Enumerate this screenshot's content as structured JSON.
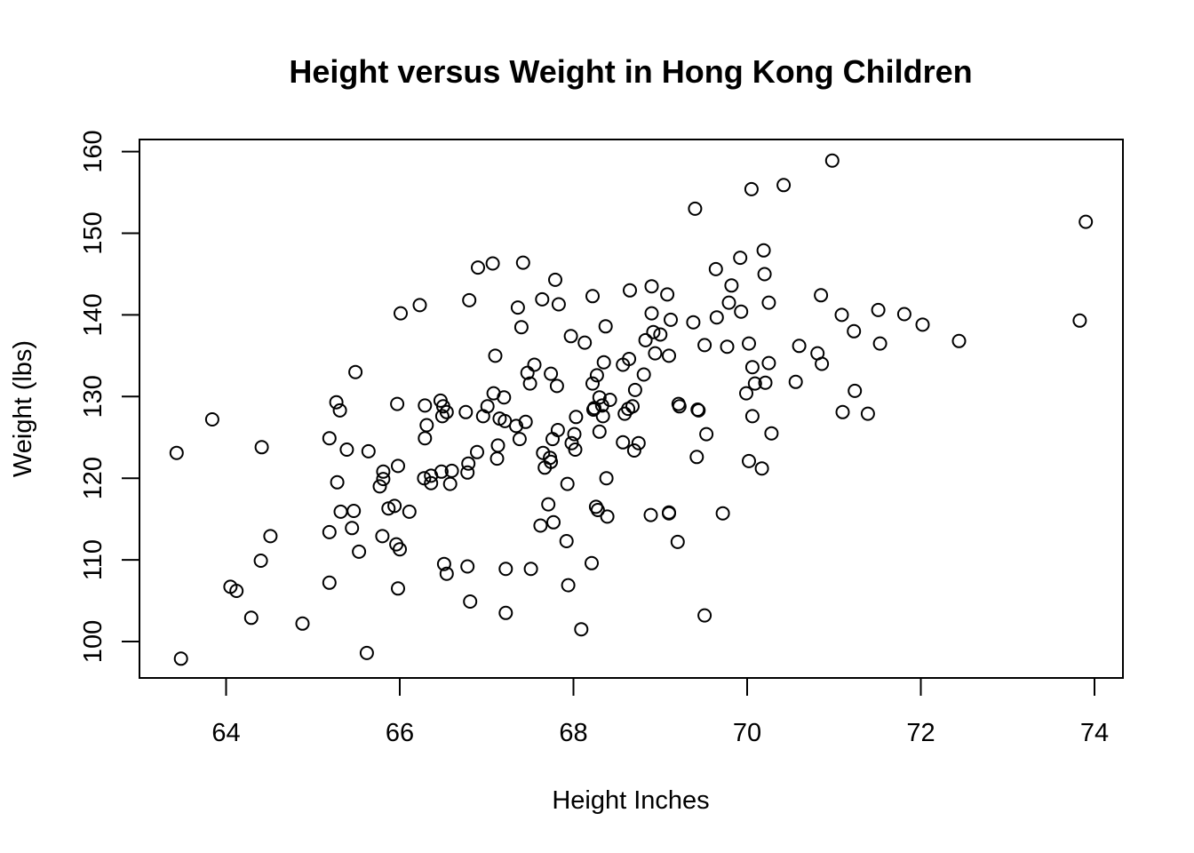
{
  "chart_data": {
    "type": "scatter",
    "title": "Height versus Weight in Hong Kong Children",
    "xlabel": "Height Inches",
    "ylabel": "Weight (lbs)",
    "xlim": [
      63.0,
      74.3
    ],
    "ylim": [
      95.5,
      161.3
    ],
    "x_ticks": [
      64,
      66,
      68,
      70,
      72,
      74
    ],
    "y_ticks": [
      100,
      110,
      120,
      130,
      140,
      150,
      160
    ],
    "grid": false,
    "legend": "none",
    "marker": "open-circle",
    "color": "#000000",
    "points": [
      [
        63.43,
        123.1
      ],
      [
        63.48,
        97.9
      ],
      [
        63.84,
        127.2
      ],
      [
        64.05,
        106.7
      ],
      [
        64.12,
        106.2
      ],
      [
        64.29,
        102.9
      ],
      [
        64.4,
        109.9
      ],
      [
        64.41,
        123.8
      ],
      [
        64.51,
        112.9
      ],
      [
        64.88,
        102.2
      ],
      [
        65.19,
        124.9
      ],
      [
        65.19,
        113.4
      ],
      [
        65.19,
        107.2
      ],
      [
        65.27,
        129.3
      ],
      [
        65.28,
        119.5
      ],
      [
        65.31,
        128.3
      ],
      [
        65.32,
        115.9
      ],
      [
        65.39,
        123.5
      ],
      [
        65.45,
        113.9
      ],
      [
        65.47,
        116.0
      ],
      [
        65.49,
        133.0
      ],
      [
        65.53,
        111.0
      ],
      [
        65.62,
        98.6
      ],
      [
        65.64,
        123.3
      ],
      [
        65.77,
        119.0
      ],
      [
        65.8,
        112.9
      ],
      [
        65.81,
        120.8
      ],
      [
        65.81,
        119.9
      ],
      [
        65.87,
        116.3
      ],
      [
        65.94,
        116.6
      ],
      [
        65.96,
        111.9
      ],
      [
        65.97,
        129.1
      ],
      [
        65.98,
        106.5
      ],
      [
        65.98,
        121.5
      ],
      [
        66.0,
        111.3
      ],
      [
        66.01,
        140.2
      ],
      [
        66.11,
        115.9
      ],
      [
        66.23,
        141.2
      ],
      [
        66.28,
        120.0
      ],
      [
        66.29,
        124.9
      ],
      [
        66.29,
        128.9
      ],
      [
        66.31,
        126.5
      ],
      [
        66.36,
        120.3
      ],
      [
        66.36,
        119.4
      ],
      [
        66.47,
        129.5
      ],
      [
        66.48,
        120.8
      ],
      [
        66.49,
        127.6
      ],
      [
        66.5,
        128.8
      ],
      [
        66.51,
        109.5
      ],
      [
        66.54,
        108.3
      ],
      [
        66.54,
        128.1
      ],
      [
        66.58,
        119.3
      ],
      [
        66.6,
        120.9
      ],
      [
        66.76,
        128.1
      ],
      [
        66.78,
        109.2
      ],
      [
        66.78,
        120.7
      ],
      [
        66.79,
        121.8
      ],
      [
        66.8,
        141.8
      ],
      [
        66.81,
        104.9
      ],
      [
        66.89,
        123.2
      ],
      [
        66.9,
        145.8
      ],
      [
        66.96,
        127.6
      ],
      [
        67.01,
        128.8
      ],
      [
        67.07,
        146.3
      ],
      [
        67.08,
        130.4
      ],
      [
        67.1,
        135.0
      ],
      [
        67.12,
        122.4
      ],
      [
        67.13,
        124.0
      ],
      [
        67.15,
        127.3
      ],
      [
        67.2,
        129.9
      ],
      [
        67.21,
        127.0
      ],
      [
        67.22,
        103.5
      ],
      [
        67.22,
        108.9
      ],
      [
        67.34,
        126.4
      ],
      [
        67.36,
        140.9
      ],
      [
        67.38,
        124.8
      ],
      [
        67.4,
        138.5
      ],
      [
        67.42,
        146.4
      ],
      [
        67.45,
        126.9
      ],
      [
        67.47,
        132.9
      ],
      [
        67.5,
        131.6
      ],
      [
        67.51,
        108.9
      ],
      [
        67.55,
        133.9
      ],
      [
        67.62,
        114.2
      ],
      [
        67.64,
        141.9
      ],
      [
        67.65,
        123.1
      ],
      [
        67.67,
        121.3
      ],
      [
        67.71,
        116.8
      ],
      [
        67.73,
        122.5
      ],
      [
        67.74,
        132.8
      ],
      [
        67.74,
        122.0
      ],
      [
        67.76,
        124.8
      ],
      [
        67.77,
        114.6
      ],
      [
        67.79,
        144.3
      ],
      [
        67.81,
        131.3
      ],
      [
        67.82,
        125.9
      ],
      [
        67.83,
        141.3
      ],
      [
        67.92,
        112.3
      ],
      [
        67.93,
        119.3
      ],
      [
        67.94,
        106.9
      ],
      [
        67.97,
        137.4
      ],
      [
        67.98,
        124.3
      ],
      [
        68.01,
        125.4
      ],
      [
        68.02,
        123.5
      ],
      [
        68.03,
        127.5
      ],
      [
        68.09,
        101.5
      ],
      [
        68.13,
        136.6
      ],
      [
        68.21,
        109.6
      ],
      [
        68.22,
        142.3
      ],
      [
        68.22,
        131.6
      ],
      [
        68.23,
        128.4
      ],
      [
        68.24,
        128.6
      ],
      [
        68.26,
        116.5
      ],
      [
        68.27,
        132.6
      ],
      [
        68.28,
        116.1
      ],
      [
        68.3,
        129.9
      ],
      [
        68.3,
        125.7
      ],
      [
        68.33,
        128.9
      ],
      [
        68.34,
        127.6
      ],
      [
        68.35,
        134.2
      ],
      [
        68.37,
        138.6
      ],
      [
        68.38,
        120.0
      ],
      [
        68.39,
        115.3
      ],
      [
        68.42,
        129.6
      ],
      [
        68.57,
        133.9
      ],
      [
        68.57,
        124.4
      ],
      [
        68.59,
        127.9
      ],
      [
        68.63,
        128.5
      ],
      [
        68.64,
        134.6
      ],
      [
        68.65,
        143.0
      ],
      [
        68.68,
        128.8
      ],
      [
        68.7,
        123.4
      ],
      [
        68.71,
        130.8
      ],
      [
        68.75,
        124.3
      ],
      [
        68.81,
        132.7
      ],
      [
        68.83,
        136.9
      ],
      [
        68.89,
        115.5
      ],
      [
        68.9,
        143.5
      ],
      [
        68.9,
        140.2
      ],
      [
        68.92,
        137.9
      ],
      [
        68.94,
        135.3
      ],
      [
        69.0,
        137.6
      ],
      [
        69.08,
        142.5
      ],
      [
        69.1,
        115.7
      ],
      [
        69.1,
        115.8
      ],
      [
        69.1,
        135.0
      ],
      [
        69.12,
        139.4
      ],
      [
        69.2,
        112.2
      ],
      [
        69.21,
        129.1
      ],
      [
        69.22,
        128.8
      ],
      [
        69.38,
        139.1
      ],
      [
        69.4,
        153.0
      ],
      [
        69.42,
        122.6
      ],
      [
        69.43,
        128.4
      ],
      [
        69.44,
        128.3
      ],
      [
        69.51,
        103.2
      ],
      [
        69.51,
        136.3
      ],
      [
        69.53,
        125.4
      ],
      [
        69.64,
        145.6
      ],
      [
        69.65,
        139.7
      ],
      [
        69.72,
        115.7
      ],
      [
        69.77,
        136.1
      ],
      [
        69.79,
        141.5
      ],
      [
        69.82,
        143.6
      ],
      [
        69.92,
        147.0
      ],
      [
        69.93,
        140.4
      ],
      [
        69.99,
        130.4
      ],
      [
        70.02,
        122.1
      ],
      [
        70.02,
        136.5
      ],
      [
        70.05,
        155.4
      ],
      [
        70.06,
        127.6
      ],
      [
        70.06,
        133.6
      ],
      [
        70.09,
        131.6
      ],
      [
        70.17,
        121.2
      ],
      [
        70.19,
        147.9
      ],
      [
        70.2,
        145.0
      ],
      [
        70.21,
        131.7
      ],
      [
        70.25,
        141.5
      ],
      [
        70.25,
        134.1
      ],
      [
        70.28,
        125.5
      ],
      [
        70.42,
        155.9
      ],
      [
        70.56,
        131.8
      ],
      [
        70.6,
        136.2
      ],
      [
        70.81,
        135.3
      ],
      [
        70.85,
        142.4
      ],
      [
        70.86,
        134.0
      ],
      [
        70.98,
        158.9
      ],
      [
        71.09,
        140.0
      ],
      [
        71.1,
        128.1
      ],
      [
        71.23,
        138.0
      ],
      [
        71.24,
        130.7
      ],
      [
        71.39,
        127.9
      ],
      [
        71.51,
        140.6
      ],
      [
        71.53,
        136.5
      ],
      [
        71.81,
        140.1
      ],
      [
        72.02,
        138.8
      ],
      [
        72.44,
        136.8
      ],
      [
        73.83,
        139.3
      ],
      [
        73.9,
        151.4
      ]
    ]
  }
}
